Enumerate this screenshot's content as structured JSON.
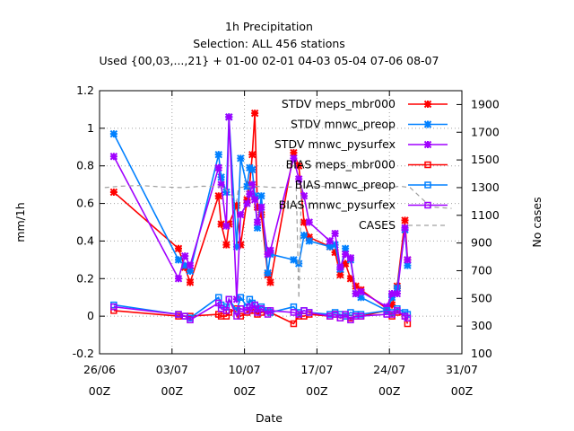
{
  "chart_data": {
    "type": "line",
    "title_lines": [
      "1h Precipitation",
      "Selection: ALL    456 stations",
      "Used {00,03,...,21} + 01-00 02-01 04-03 05-04 07-06 08-07"
    ],
    "xlabel": "Date",
    "ylabel": "mm/1h",
    "y2label": "No cases",
    "xlim": [
      "2024-06-26T00:00",
      "2024-07-31T00:00"
    ],
    "ylim": [
      -0.2,
      1.2
    ],
    "y2lim": [
      100,
      2000
    ],
    "x_ticks": [
      {
        "date": "2024-06-26T00:00",
        "line1": "26/06",
        "line2": "00Z"
      },
      {
        "date": "2024-07-03T00:00",
        "line1": "03/07",
        "line2": "00Z"
      },
      {
        "date": "2024-07-10T00:00",
        "line1": "10/07",
        "line2": "00Z"
      },
      {
        "date": "2024-07-17T00:00",
        "line1": "17/07",
        "line2": "00Z"
      },
      {
        "date": "2024-07-24T00:00",
        "line1": "24/07",
        "line2": "00Z"
      },
      {
        "date": "2024-07-31T00:00",
        "line1": "31/07",
        "line2": "00Z"
      }
    ],
    "y_ticks": [
      "-0.2",
      "0",
      "0.2",
      "0.4",
      "0.6",
      "0.8",
      "1",
      "1.2"
    ],
    "y2_ticks": [
      "100",
      "300",
      "500",
      "700",
      "900",
      "1100",
      "1300",
      "1500",
      "1700",
      "1900"
    ],
    "grid": true,
    "legend_position": "top-right",
    "series": [
      {
        "name": "STDV meps_mbr000",
        "color": "#ff0000",
        "marker": "x",
        "axis": "y",
        "points": [
          [
            "2024-06-27T09:00",
            0.66
          ],
          [
            "2024-07-03T15:00",
            0.36
          ],
          [
            "2024-07-04T06:00",
            0.26
          ],
          [
            "2024-07-04T18:00",
            0.18
          ],
          [
            "2024-07-07T12:00",
            0.64
          ],
          [
            "2024-07-07T18:00",
            0.49
          ],
          [
            "2024-07-08T06:00",
            0.38
          ],
          [
            "2024-07-08T12:00",
            0.49
          ],
          [
            "2024-07-09T06:00",
            0.59
          ],
          [
            "2024-07-09T15:00",
            0.38
          ],
          [
            "2024-07-10T06:00",
            0.62
          ],
          [
            "2024-07-10T12:00",
            0.7
          ],
          [
            "2024-07-10T18:00",
            0.86
          ],
          [
            "2024-07-11T00:00",
            1.08
          ],
          [
            "2024-07-11T06:00",
            0.58
          ],
          [
            "2024-07-11T15:00",
            0.54
          ],
          [
            "2024-07-12T06:00",
            0.22
          ],
          [
            "2024-07-12T12:00",
            0.18
          ],
          [
            "2024-07-14T18:00",
            0.87
          ],
          [
            "2024-07-15T06:00",
            0.8
          ],
          [
            "2024-07-15T18:00",
            0.5
          ],
          [
            "2024-07-16T06:00",
            0.42
          ],
          [
            "2024-07-18T06:00",
            0.37
          ],
          [
            "2024-07-18T18:00",
            0.34
          ],
          [
            "2024-07-19T06:00",
            0.22
          ],
          [
            "2024-07-19T18:00",
            0.28
          ],
          [
            "2024-07-20T06:00",
            0.2
          ],
          [
            "2024-07-20T18:00",
            0.16
          ],
          [
            "2024-07-21T06:00",
            0.14
          ],
          [
            "2024-07-23T18:00",
            0.04
          ],
          [
            "2024-07-24T06:00",
            0.06
          ],
          [
            "2024-07-24T18:00",
            0.16
          ],
          [
            "2024-07-25T12:00",
            0.51
          ],
          [
            "2024-07-25T18:00",
            0.3
          ]
        ]
      },
      {
        "name": "STDV mnwc_preop",
        "color": "#0080ff",
        "marker": "x",
        "axis": "y",
        "points": [
          [
            "2024-06-27T09:00",
            0.97
          ],
          [
            "2024-07-03T15:00",
            0.3
          ],
          [
            "2024-07-04T06:00",
            0.27
          ],
          [
            "2024-07-04T18:00",
            0.24
          ],
          [
            "2024-07-07T12:00",
            0.86
          ],
          [
            "2024-07-07T18:00",
            0.74
          ],
          [
            "2024-07-08T06:00",
            0.66
          ],
          [
            "2024-07-08T12:00",
            1.06
          ],
          [
            "2024-07-09T06:00",
            0.37
          ],
          [
            "2024-07-09T15:00",
            0.84
          ],
          [
            "2024-07-10T06:00",
            0.69
          ],
          [
            "2024-07-10T12:00",
            0.79
          ],
          [
            "2024-07-10T18:00",
            0.78
          ],
          [
            "2024-07-11T00:00",
            0.64
          ],
          [
            "2024-07-11T06:00",
            0.47
          ],
          [
            "2024-07-11T15:00",
            0.64
          ],
          [
            "2024-07-12T06:00",
            0.23
          ],
          [
            "2024-07-12T12:00",
            0.33
          ],
          [
            "2024-07-14T18:00",
            0.3
          ],
          [
            "2024-07-15T06:00",
            0.28
          ],
          [
            "2024-07-15T18:00",
            0.43
          ],
          [
            "2024-07-16T06:00",
            0.4
          ],
          [
            "2024-07-18T06:00",
            0.37
          ],
          [
            "2024-07-18T18:00",
            0.38
          ],
          [
            "2024-07-19T06:00",
            0.25
          ],
          [
            "2024-07-19T18:00",
            0.36
          ],
          [
            "2024-07-20T06:00",
            0.3
          ],
          [
            "2024-07-20T18:00",
            0.12
          ],
          [
            "2024-07-21T06:00",
            0.1
          ],
          [
            "2024-07-23T18:00",
            0.03
          ],
          [
            "2024-07-24T06:00",
            0.1
          ],
          [
            "2024-07-24T18:00",
            0.15
          ],
          [
            "2024-07-25T12:00",
            0.46
          ],
          [
            "2024-07-25T18:00",
            0.27
          ]
        ]
      },
      {
        "name": "STDV mnwc_pysurfex",
        "color": "#a000ff",
        "marker": "x",
        "axis": "y",
        "points": [
          [
            "2024-06-27T09:00",
            0.85
          ],
          [
            "2024-07-03T15:00",
            0.2
          ],
          [
            "2024-07-04T06:00",
            0.32
          ],
          [
            "2024-07-04T18:00",
            0.27
          ],
          [
            "2024-07-07T12:00",
            0.79
          ],
          [
            "2024-07-07T18:00",
            0.7
          ],
          [
            "2024-07-08T06:00",
            0.48
          ],
          [
            "2024-07-08T12:00",
            1.06
          ],
          [
            "2024-07-09T06:00",
            0.09
          ],
          [
            "2024-07-09T15:00",
            0.54
          ],
          [
            "2024-07-10T06:00",
            0.6
          ],
          [
            "2024-07-10T12:00",
            0.65
          ],
          [
            "2024-07-10T18:00",
            0.7
          ],
          [
            "2024-07-11T00:00",
            0.62
          ],
          [
            "2024-07-11T06:00",
            0.5
          ],
          [
            "2024-07-11T15:00",
            0.58
          ],
          [
            "2024-07-12T06:00",
            0.33
          ],
          [
            "2024-07-12T12:00",
            0.35
          ],
          [
            "2024-07-14T18:00",
            0.84
          ],
          [
            "2024-07-15T06:00",
            0.73
          ],
          [
            "2024-07-15T18:00",
            0.64
          ],
          [
            "2024-07-16T06:00",
            0.5
          ],
          [
            "2024-07-18T06:00",
            0.4
          ],
          [
            "2024-07-18T18:00",
            0.44
          ],
          [
            "2024-07-19T06:00",
            0.26
          ],
          [
            "2024-07-19T18:00",
            0.33
          ],
          [
            "2024-07-20T06:00",
            0.31
          ],
          [
            "2024-07-20T18:00",
            0.12
          ],
          [
            "2024-07-21T06:00",
            0.13
          ],
          [
            "2024-07-23T18:00",
            0.05
          ],
          [
            "2024-07-24T06:00",
            0.12
          ],
          [
            "2024-07-24T18:00",
            0.12
          ],
          [
            "2024-07-25T12:00",
            0.47
          ],
          [
            "2024-07-25T18:00",
            0.3
          ]
        ]
      },
      {
        "name": "BIAS meps_mbr000",
        "color": "#ff0000",
        "marker": "square",
        "axis": "y",
        "points": [
          [
            "2024-06-27T09:00",
            0.03
          ],
          [
            "2024-07-03T15:00",
            0.0
          ],
          [
            "2024-07-04T06:00",
            0.0
          ],
          [
            "2024-07-04T18:00",
            0.0
          ],
          [
            "2024-07-07T12:00",
            0.01
          ],
          [
            "2024-07-07T18:00",
            0.0
          ],
          [
            "2024-07-08T06:00",
            0.0
          ],
          [
            "2024-07-08T12:00",
            0.02
          ],
          [
            "2024-07-09T06:00",
            0.04
          ],
          [
            "2024-07-09T15:00",
            0.0
          ],
          [
            "2024-07-10T06:00",
            0.02
          ],
          [
            "2024-07-10T12:00",
            0.03
          ],
          [
            "2024-07-10T18:00",
            0.04
          ],
          [
            "2024-07-11T00:00",
            0.03
          ],
          [
            "2024-07-11T06:00",
            0.01
          ],
          [
            "2024-07-11T15:00",
            0.02
          ],
          [
            "2024-07-12T06:00",
            0.03
          ],
          [
            "2024-07-12T12:00",
            0.02
          ],
          [
            "2024-07-14T18:00",
            -0.04
          ],
          [
            "2024-07-15T06:00",
            0.0
          ],
          [
            "2024-07-15T18:00",
            0.0
          ],
          [
            "2024-07-16T06:00",
            0.01
          ],
          [
            "2024-07-18T06:00",
            0.0
          ],
          [
            "2024-07-18T18:00",
            0.01
          ],
          [
            "2024-07-19T06:00",
            -0.01
          ],
          [
            "2024-07-19T18:00",
            0.0
          ],
          [
            "2024-07-20T06:00",
            -0.01
          ],
          [
            "2024-07-20T18:00",
            0.0
          ],
          [
            "2024-07-21T06:00",
            0.0
          ],
          [
            "2024-07-23T18:00",
            0.03
          ],
          [
            "2024-07-24T06:00",
            0.0
          ],
          [
            "2024-07-24T18:00",
            0.02
          ],
          [
            "2024-07-25T12:00",
            0.0
          ],
          [
            "2024-07-25T18:00",
            -0.04
          ]
        ]
      },
      {
        "name": "BIAS mnwc_preop",
        "color": "#0080ff",
        "marker": "square",
        "axis": "y",
        "points": [
          [
            "2024-06-27T09:00",
            0.06
          ],
          [
            "2024-07-03T15:00",
            0.01
          ],
          [
            "2024-07-04T06:00",
            0.0
          ],
          [
            "2024-07-04T18:00",
            -0.01
          ],
          [
            "2024-07-07T12:00",
            0.1
          ],
          [
            "2024-07-07T18:00",
            0.06
          ],
          [
            "2024-07-08T06:00",
            0.05
          ],
          [
            "2024-07-08T12:00",
            0.09
          ],
          [
            "2024-07-09T06:00",
            0.03
          ],
          [
            "2024-07-09T15:00",
            0.1
          ],
          [
            "2024-07-10T06:00",
            0.05
          ],
          [
            "2024-07-10T12:00",
            0.09
          ],
          [
            "2024-07-10T18:00",
            0.07
          ],
          [
            "2024-07-11T00:00",
            0.06
          ],
          [
            "2024-07-11T06:00",
            0.04
          ],
          [
            "2024-07-11T15:00",
            0.05
          ],
          [
            "2024-07-12T06:00",
            0.03
          ],
          [
            "2024-07-12T12:00",
            0.02
          ],
          [
            "2024-07-14T18:00",
            0.05
          ],
          [
            "2024-07-15T06:00",
            0.02
          ],
          [
            "2024-07-15T18:00",
            0.03
          ],
          [
            "2024-07-16T06:00",
            0.02
          ],
          [
            "2024-07-18T06:00",
            0.01
          ],
          [
            "2024-07-18T18:00",
            0.02
          ],
          [
            "2024-07-19T06:00",
            0.01
          ],
          [
            "2024-07-19T18:00",
            0.0
          ],
          [
            "2024-07-20T06:00",
            0.02
          ],
          [
            "2024-07-20T18:00",
            0.01
          ],
          [
            "2024-07-21T06:00",
            0.01
          ],
          [
            "2024-07-23T18:00",
            0.03
          ],
          [
            "2024-07-24T06:00",
            0.02
          ],
          [
            "2024-07-24T18:00",
            0.04
          ],
          [
            "2024-07-25T12:00",
            0.02
          ],
          [
            "2024-07-25T18:00",
            0.01
          ]
        ]
      },
      {
        "name": "BIAS mnwc_pysurfex",
        "color": "#a000ff",
        "marker": "square",
        "axis": "y",
        "points": [
          [
            "2024-06-27T09:00",
            0.05
          ],
          [
            "2024-07-03T15:00",
            0.01
          ],
          [
            "2024-07-04T06:00",
            0.0
          ],
          [
            "2024-07-04T18:00",
            -0.02
          ],
          [
            "2024-07-07T12:00",
            0.07
          ],
          [
            "2024-07-07T18:00",
            0.04
          ],
          [
            "2024-07-08T06:00",
            0.03
          ],
          [
            "2024-07-08T12:00",
            0.09
          ],
          [
            "2024-07-09T06:00",
            0.0
          ],
          [
            "2024-07-09T15:00",
            0.04
          ],
          [
            "2024-07-10T06:00",
            0.03
          ],
          [
            "2024-07-10T12:00",
            0.05
          ],
          [
            "2024-07-10T18:00",
            0.04
          ],
          [
            "2024-07-11T00:00",
            0.06
          ],
          [
            "2024-07-11T06:00",
            0.02
          ],
          [
            "2024-07-11T15:00",
            0.04
          ],
          [
            "2024-07-12T06:00",
            0.01
          ],
          [
            "2024-07-12T12:00",
            0.03
          ],
          [
            "2024-07-14T18:00",
            0.02
          ],
          [
            "2024-07-15T06:00",
            0.01
          ],
          [
            "2024-07-15T18:00",
            0.03
          ],
          [
            "2024-07-16T06:00",
            0.02
          ],
          [
            "2024-07-18T06:00",
            0.0
          ],
          [
            "2024-07-18T18:00",
            0.01
          ],
          [
            "2024-07-19T06:00",
            -0.01
          ],
          [
            "2024-07-19T18:00",
            0.01
          ],
          [
            "2024-07-20T06:00",
            -0.02
          ],
          [
            "2024-07-20T18:00",
            0.0
          ],
          [
            "2024-07-21T06:00",
            0.0
          ],
          [
            "2024-07-23T18:00",
            0.01
          ],
          [
            "2024-07-24T06:00",
            0.01
          ],
          [
            "2024-07-24T18:00",
            0.03
          ],
          [
            "2024-07-25T12:00",
            0.0
          ],
          [
            "2024-07-25T18:00",
            -0.01
          ]
        ]
      },
      {
        "name": "CASES",
        "color": "#a0a0a0",
        "marker": "none",
        "axis": "y2",
        "dash": true,
        "points": [
          [
            "2024-06-26T12:00",
            1300
          ],
          [
            "2024-06-28T00:00",
            1310
          ],
          [
            "2024-06-30T00:00",
            1315
          ],
          [
            "2024-07-02T00:00",
            1305
          ],
          [
            "2024-07-04T00:00",
            1300
          ],
          [
            "2024-07-06T00:00",
            1310
          ],
          [
            "2024-07-08T00:00",
            1305
          ],
          [
            "2024-07-09T06:00",
            1200
          ],
          [
            "2024-07-09T10:00",
            1300
          ],
          [
            "2024-07-11T00:00",
            1310
          ],
          [
            "2024-07-13T00:00",
            1300
          ],
          [
            "2024-07-14T12:00",
            1305
          ],
          [
            "2024-07-15T00:00",
            1300
          ],
          [
            "2024-07-15T06:00",
            500
          ],
          [
            "2024-07-15T12:00",
            1300
          ],
          [
            "2024-07-17T00:00",
            1310
          ],
          [
            "2024-07-19T00:00",
            1305
          ],
          [
            "2024-07-21T00:00",
            1300
          ],
          [
            "2024-07-23T00:00",
            1310
          ],
          [
            "2024-07-24T00:00",
            1300
          ],
          [
            "2024-07-25T00:00",
            1310
          ],
          [
            "2024-07-26T00:00",
            1300
          ],
          [
            "2024-07-28T00:00",
            1160
          ],
          [
            "2024-07-30T00:00",
            1150
          ]
        ]
      }
    ]
  }
}
